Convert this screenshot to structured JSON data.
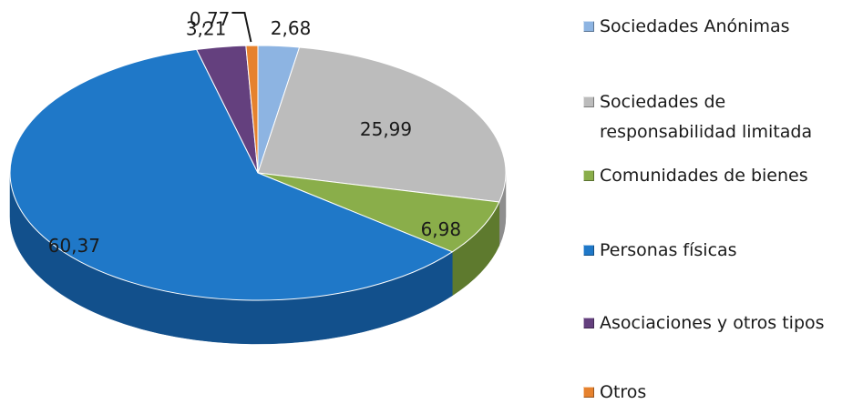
{
  "chart_data": {
    "type": "pie",
    "title": "",
    "slices": [
      {
        "label": "Sociedades Anónimas",
        "value": 2.68,
        "display": "2,68",
        "color": "#8DB4E2",
        "side": "#5E87B5"
      },
      {
        "label": "Sociedades de\nresponsabilidad limitada",
        "value": 25.99,
        "display": "25,99",
        "color": "#BCBCBC",
        "side": "#8E8E8E"
      },
      {
        "label": "Comunidades de bienes",
        "value": 6.98,
        "display": "6,98",
        "color": "#8AAE4A",
        "side": "#5E7A2E"
      },
      {
        "label": "Personas físicas",
        "value": 60.37,
        "display": "60,37",
        "color": "#1F78C8",
        "side": "#12508C"
      },
      {
        "label": "Asociaciones y otros tipos",
        "value": 3.21,
        "display": "3,21",
        "color": "#64407E",
        "side": "#432955"
      },
      {
        "label": "Otros",
        "value": 0.77,
        "display": "0,77",
        "color": "#E6822E",
        "side": "#A85A1A"
      }
    ],
    "legend_position": "right"
  }
}
